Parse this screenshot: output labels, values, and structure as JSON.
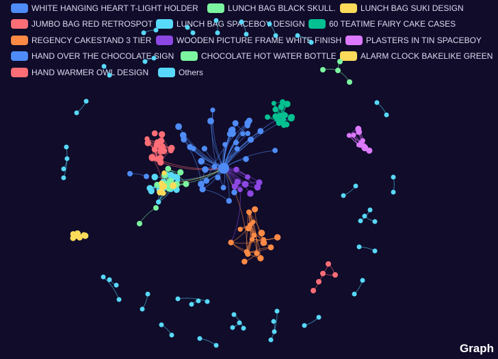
{
  "chart_data": {
    "type": "graph",
    "corner_label": "Graph",
    "legend_position": "top-left",
    "categories": [
      {
        "name": "WHITE HANGING HEART T-LIGHT HOLDER",
        "color": "#4f8cf7"
      },
      {
        "name": "LUNCH BAG BLACK SKULL.",
        "color": "#7cf5a0"
      },
      {
        "name": "LUNCH BAG SUKI DESIGN",
        "color": "#fddb5a"
      },
      {
        "name": "JUMBO BAG RED RETROSPOT",
        "color": "#ff6e76"
      },
      {
        "name": "LUNCH BAG SPACEBOY DESIGN",
        "color": "#58d9f9"
      },
      {
        "name": "60 TEATIME FAIRY CAKE CASES",
        "color": "#05c091"
      },
      {
        "name": "REGENCY CAKESTAND 3 TIER",
        "color": "#ff8a45"
      },
      {
        "name": "WOODEN PICTURE FRAME WHITE FINISH",
        "color": "#8d48e3"
      },
      {
        "name": "PLASTERS IN TIN SPACEBOY",
        "color": "#dd79ff"
      },
      {
        "name": "HAND OVER THE CHOCOLATE SIGN",
        "color": "#4f8cf7"
      },
      {
        "name": "CHOCOLATE HOT WATER BOTTLE",
        "color": "#7cf5a0"
      },
      {
        "name": "ALARM CLOCK BAKELIKE GREEN",
        "color": "#fddb5a"
      },
      {
        "name": "HAND WARMER OWL DESIGN",
        "color": "#ff6e76"
      },
      {
        "name": "Others",
        "color": "#58d9f9"
      }
    ]
  }
}
